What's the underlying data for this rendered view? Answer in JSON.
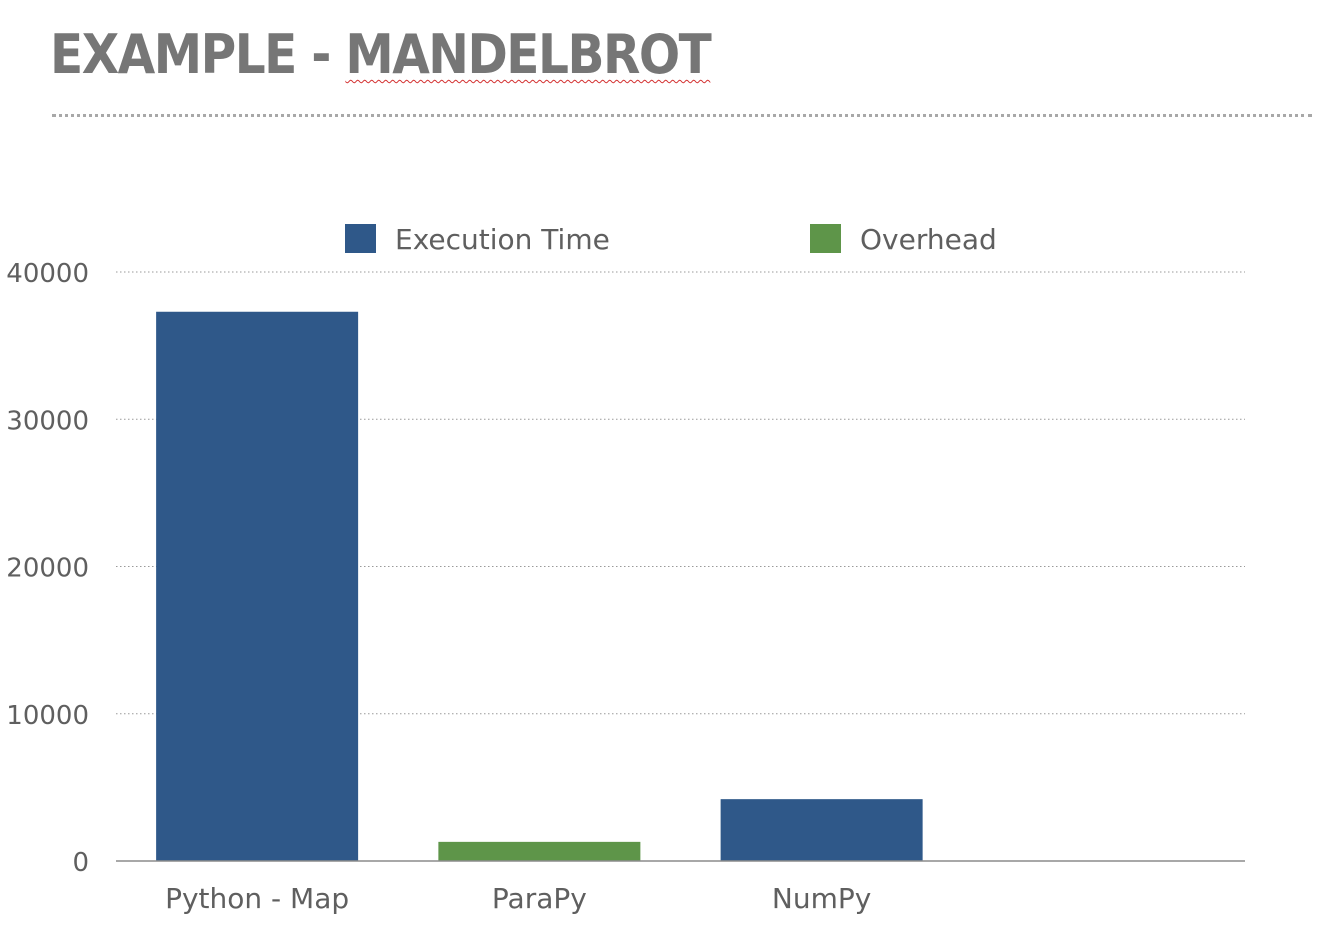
{
  "slide": {
    "title_prefix": "EXAMPLE - ",
    "title_highlight": "MANDELBROT"
  },
  "chart_data": {
    "type": "bar",
    "title": "",
    "xlabel": "",
    "ylabel": "",
    "categories": [
      "Python - Map",
      "ParaPy",
      "NumPy"
    ],
    "values": [
      37300,
      1300,
      4200
    ],
    "series_by_category": [
      "Execution Time",
      "Overhead",
      "Execution Time"
    ],
    "legend": [
      {
        "name": "Execution Time",
        "color": "#2f5889"
      },
      {
        "name": "Overhead",
        "color": "#5e9549"
      }
    ],
    "legend_position": "top",
    "ylim": [
      0,
      40000
    ],
    "yticks": [
      "0",
      "10000",
      "20000",
      "30000",
      "40000"
    ],
    "grid": true,
    "colors": {
      "Execution Time": "#2f5889",
      "Overhead": "#5e9549",
      "text": "#5f5f5f",
      "grid": "#9a9a9a",
      "axis": "#8c8c8c"
    }
  }
}
